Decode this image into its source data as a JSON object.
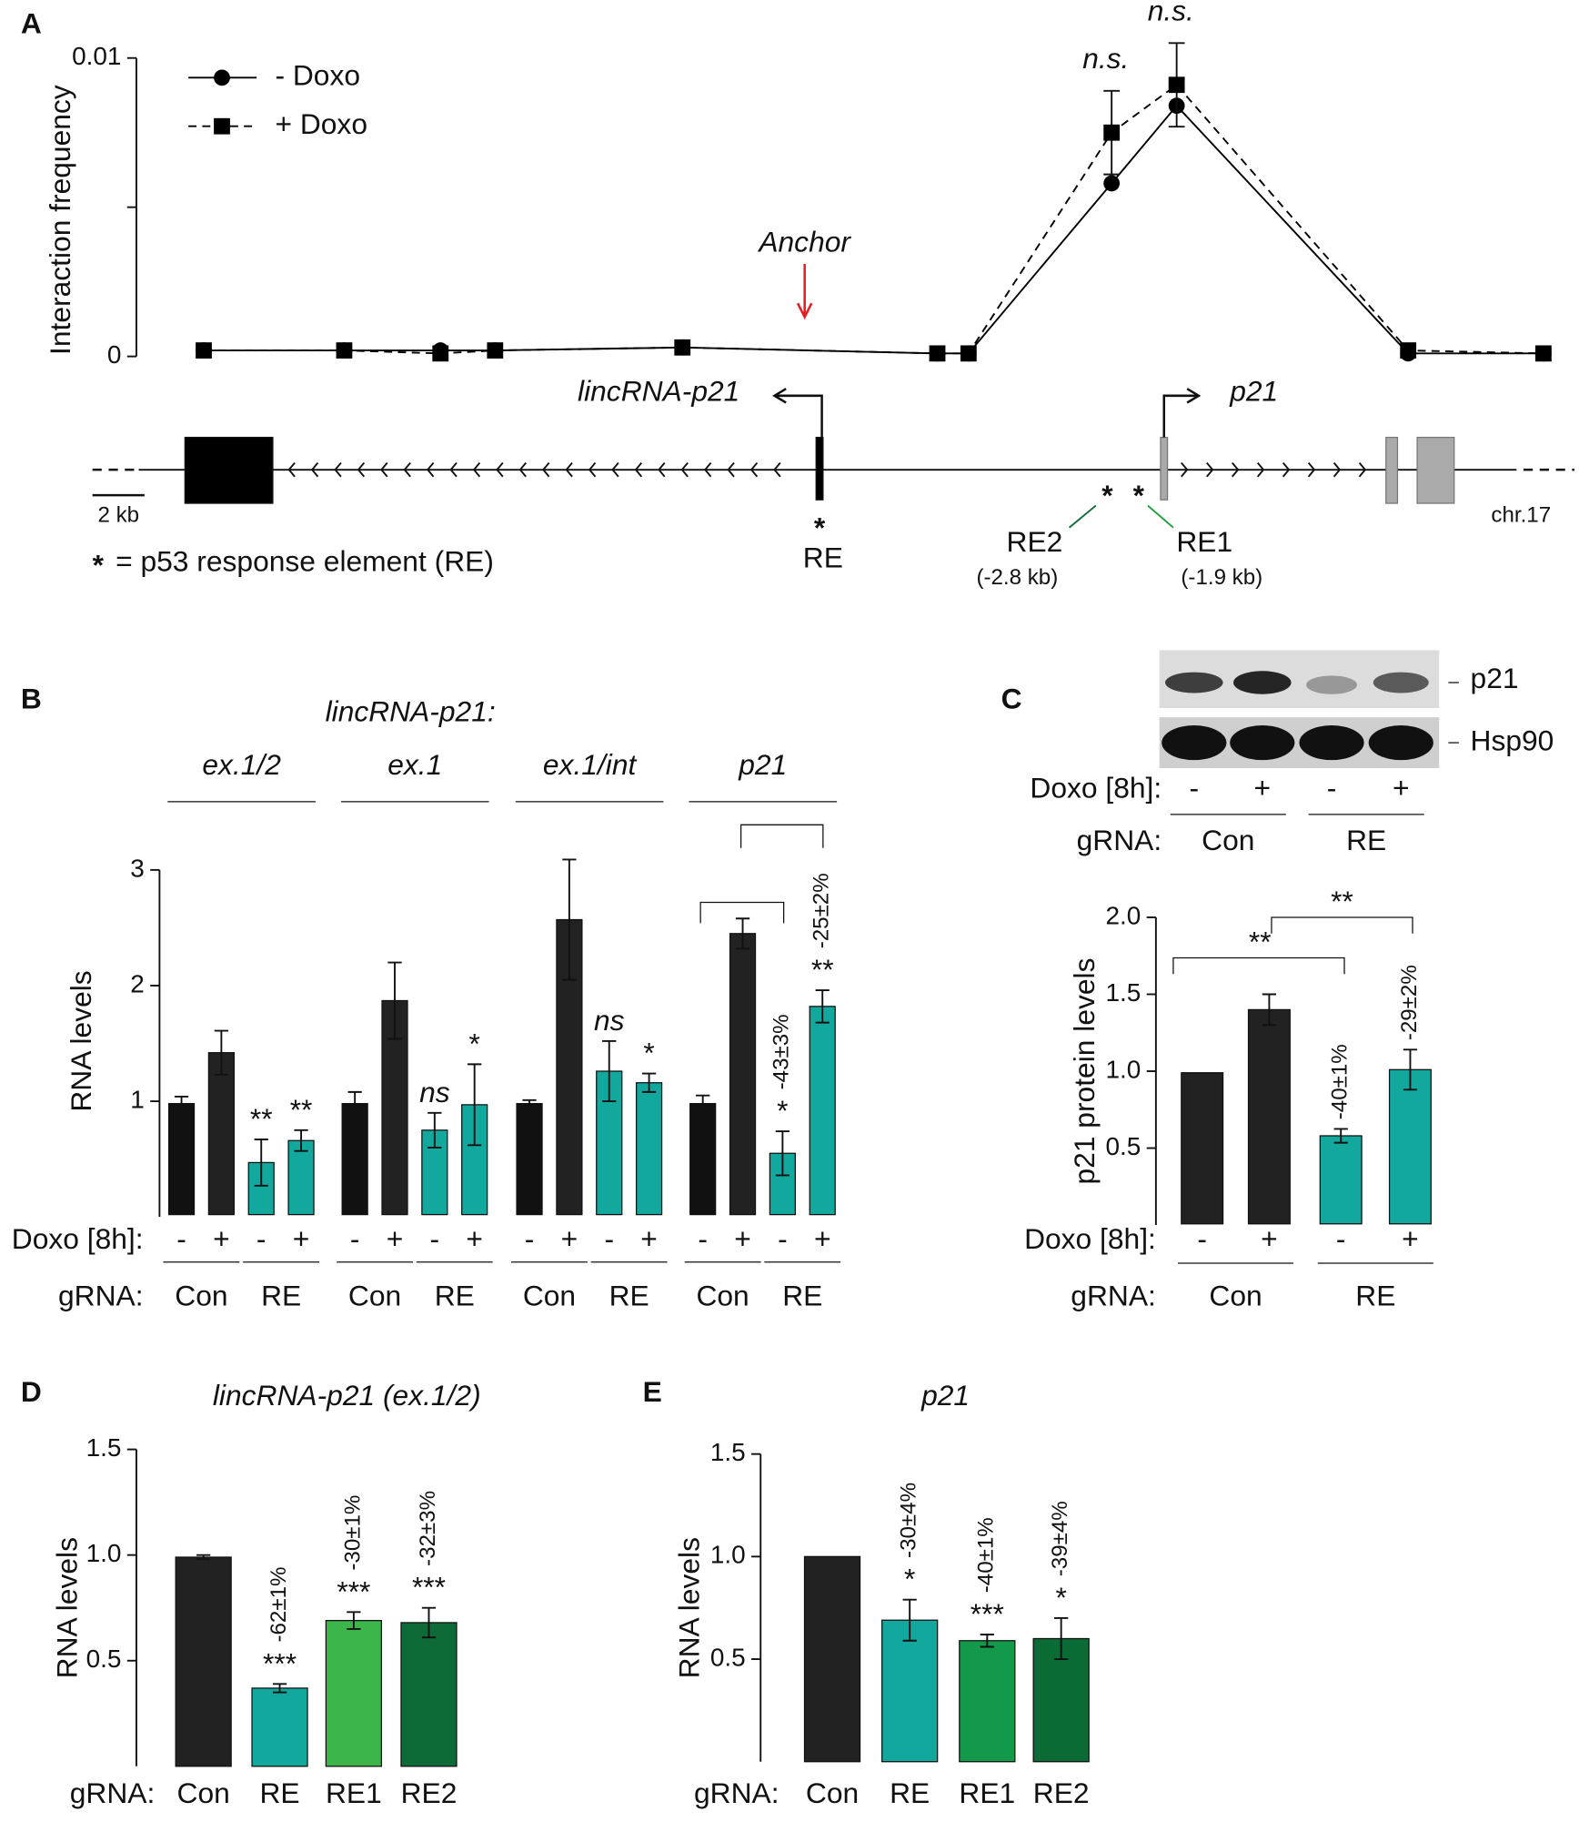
{
  "chart_data": [
    {
      "panel": "A",
      "type": "line",
      "ylabel": "Interaction frequency",
      "x": [
        -23.1,
        -17.7,
        -14.0,
        -11.9,
        -4.7,
        5.1,
        6.3,
        11.8,
        14.3,
        23.2,
        28.4
      ],
      "xlim": [
        -25.6,
        29.5
      ],
      "ylim": [
        0,
        0.01
      ],
      "yticks": [
        0,
        0.01
      ],
      "minor_yticks": [
        0.005
      ],
      "series": [
        {
          "name": "- Doxo",
          "color": "#000000",
          "dash": "solid",
          "marker": "circle",
          "values": [
            0.0002,
            0.0002,
            0.0002,
            0.0002,
            0.0003,
            0.0001,
            0.0001,
            0.0058,
            0.0084,
            0.0001,
            0.0001
          ]
        },
        {
          "name": "+ Doxo",
          "color": "#000000",
          "dash": "dashed",
          "marker": "square",
          "values": [
            0.0002,
            0.0002,
            0.0001,
            0.0002,
            0.0003,
            0.0001,
            0.0001,
            0.0075,
            0.0091,
            0.0002,
            0.0001
          ],
          "errors": [
            null,
            null,
            null,
            null,
            null,
            null,
            null,
            0.0014,
            0.0014,
            null,
            null
          ]
        }
      ],
      "labels": [
        null,
        null,
        null,
        null,
        null,
        null,
        null,
        "n.s.",
        "n.s.",
        null,
        null
      ],
      "legend": "top-left",
      "anchor_label": "Anchor",
      "anchor_color": "#e31e24",
      "diagram": {
        "genes": [
          "lincRNA-p21",
          "p21"
        ],
        "star": "*",
        "re_labels": [
          "RE",
          "RE2",
          "RE1"
        ],
        "re_positions": [
          "(-2.8 kb)",
          "(-1.9 kb)"
        ],
        "scale_bar": {
          "value": 2,
          "label": "2 kb"
        },
        "chromosome": "chr.17",
        "footnote": "= p53 response element (RE)"
      }
    },
    {
      "panel": "B",
      "type": "grouped_bar",
      "title": "lincRNA-p21:",
      "ylabel": "RNA levels",
      "ylim": [
        0,
        3
      ],
      "yticks": [
        1,
        2,
        3
      ],
      "doxo_label": "Doxo [8h]:",
      "doxo": [
        "-",
        "+",
        "-",
        "+"
      ],
      "grna_label": "gRNA:",
      "grna": [
        "Con",
        "RE"
      ],
      "colors": [
        "#111111",
        "#222222",
        "#13a89e",
        "#13a89e"
      ],
      "groups": [
        {
          "name": "ex.1/2",
          "values": [
            0.98,
            1.42,
            0.47,
            0.66
          ],
          "errors": [
            0.06,
            0.19,
            0.2,
            0.09
          ],
          "stars": [
            null,
            null,
            "**",
            "**"
          ]
        },
        {
          "name": "ex.1",
          "values": [
            0.98,
            1.87,
            0.75,
            0.97
          ],
          "errors": [
            0.1,
            0.33,
            0.15,
            0.35
          ],
          "stars": [
            null,
            null,
            "ns",
            "*"
          ]
        },
        {
          "name": "ex.1/int",
          "values": [
            0.98,
            2.57,
            1.26,
            1.16
          ],
          "errors": [
            0.03,
            0.52,
            0.26,
            0.08
          ],
          "stars": [
            null,
            null,
            "ns",
            "*"
          ]
        },
        {
          "name": "p21",
          "values": [
            0.98,
            2.45,
            0.55,
            1.82
          ],
          "errors": [
            0.07,
            0.13,
            0.19,
            0.14
          ],
          "stars": [
            null,
            null,
            "*",
            "**"
          ],
          "changes": [
            null,
            null,
            "-43±3%",
            "-25±2%"
          ]
        }
      ]
    },
    {
      "panel": "C",
      "type": "bar",
      "ylabel": "p21 protein levels",
      "ylim": [
        0,
        2
      ],
      "yticks": [
        0.5,
        {
          "value": 1,
          "label": "1.0"
        },
        1.5,
        {
          "value": 2,
          "label": "2.0"
        }
      ],
      "blot_labels": [
        "p21",
        "Hsp90"
      ],
      "doxo_label": "Doxo [8h]:",
      "doxo": [
        "-",
        "+",
        "-",
        "+"
      ],
      "grna_label": "gRNA:",
      "grna": [
        "Con",
        "RE"
      ],
      "values": [
        0.99,
        1.4,
        0.58,
        1.01
      ],
      "errors": [
        null,
        0.1,
        0.045,
        0.13
      ],
      "colors": [
        "#222222",
        "#222222",
        "#13a89e",
        "#13a89e"
      ],
      "changes": [
        null,
        null,
        "-40±1%",
        "-29±2%"
      ],
      "brackets": [
        "**",
        "**"
      ]
    },
    {
      "panel": "D",
      "type": "bar",
      "title": "lincRNA-p21 (ex.1/2)",
      "ylabel": "RNA levels",
      "ylim": [
        0,
        1.5
      ],
      "yticks": [
        0.5,
        {
          "value": 1,
          "label": "1.0"
        },
        1.5
      ],
      "grna_label": "gRNA:",
      "categories": [
        "Con",
        "RE",
        "RE1",
        "RE2"
      ],
      "values": [
        0.99,
        0.37,
        0.69,
        0.68
      ],
      "errors": [
        0.01,
        0.02,
        0.04,
        0.07
      ],
      "stars": [
        null,
        "***",
        "***",
        "***"
      ],
      "changes": [
        null,
        "-62±1%",
        "-30±1%",
        "-32±3%"
      ],
      "colors": [
        "#222222",
        "#13a89e",
        "#3cb54a",
        "#0e6b37"
      ]
    },
    {
      "panel": "E",
      "type": "bar",
      "title": "p21",
      "ylabel": "RNA levels",
      "ylim": [
        0,
        1.5
      ],
      "yticks": [
        0.5,
        {
          "value": 1,
          "label": "1.0"
        },
        1.5
      ],
      "grna_label": "gRNA:",
      "categories": [
        "Con",
        "RE",
        "RE1",
        "RE2"
      ],
      "values": [
        1.0,
        0.69,
        0.59,
        0.6
      ],
      "errors": [
        null,
        0.1,
        0.03,
        0.1
      ],
      "stars": [
        null,
        "*",
        "***",
        "*"
      ],
      "changes": [
        null,
        "-30±4%",
        "-40±1%",
        "-39±4%"
      ],
      "colors": [
        "#222222",
        "#13a89e",
        "#12994a",
        "#0b6b35"
      ]
    }
  ]
}
